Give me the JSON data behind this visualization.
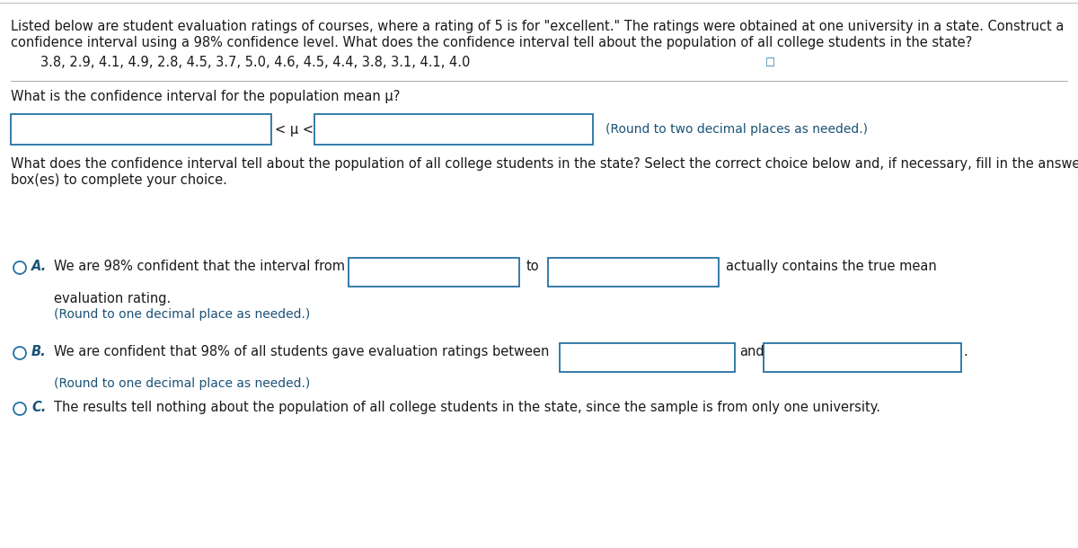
{
  "bg_color": "#ffffff",
  "text_color_black": "#1a1a1a",
  "text_color_blue": "#1a5276",
  "border_color_blue": "#2471a3",
  "top_paragraph_line1": "Listed below are student evaluation ratings of courses, where a rating of 5 is for \"excellent.\" The ratings were obtained at one university in a state. Construct a",
  "top_paragraph_line2": "confidence interval using a 98% confidence level. What does the confidence interval tell about the population of all college students in the state?",
  "data_line": "3.8, 2.9, 4.1, 4.9, 2.8, 4.5, 3.7, 5.0, 4.6, 4.5, 4.4, 3.8, 3.1, 4.1, 4.0",
  "q1_text": "What is the confidence interval for the population mean μ?",
  "ci_middle": "< μ <",
  "ci_hint": "(Round to two decimal places as needed.)",
  "q2_line1": "What does the confidence interval tell about the population of all college students in the state? Select the correct choice below and, if necessary, fill in the answer",
  "q2_line2": "box(es) to complete your choice.",
  "option_a_label": "A.",
  "option_a_text1": "We are 98% confident that the interval from",
  "option_a_to": "to",
  "option_a_text2": "actually contains the true mean",
  "option_a_text3": "evaluation rating.",
  "option_a_hint": "(Round to one decimal place as needed.)",
  "option_b_label": "B.",
  "option_b_text1": "We are confident that 98% of all students gave evaluation ratings between",
  "option_b_and": "and",
  "option_b_hint": "(Round to one decimal place as needed.)",
  "option_c_label": "C.",
  "option_c_text": "The results tell nothing about the population of all college students in the state, since the sample is from only one university.",
  "font_size_main": 10.5,
  "font_size_hint": 10.0,
  "font_size_label": 10.5
}
